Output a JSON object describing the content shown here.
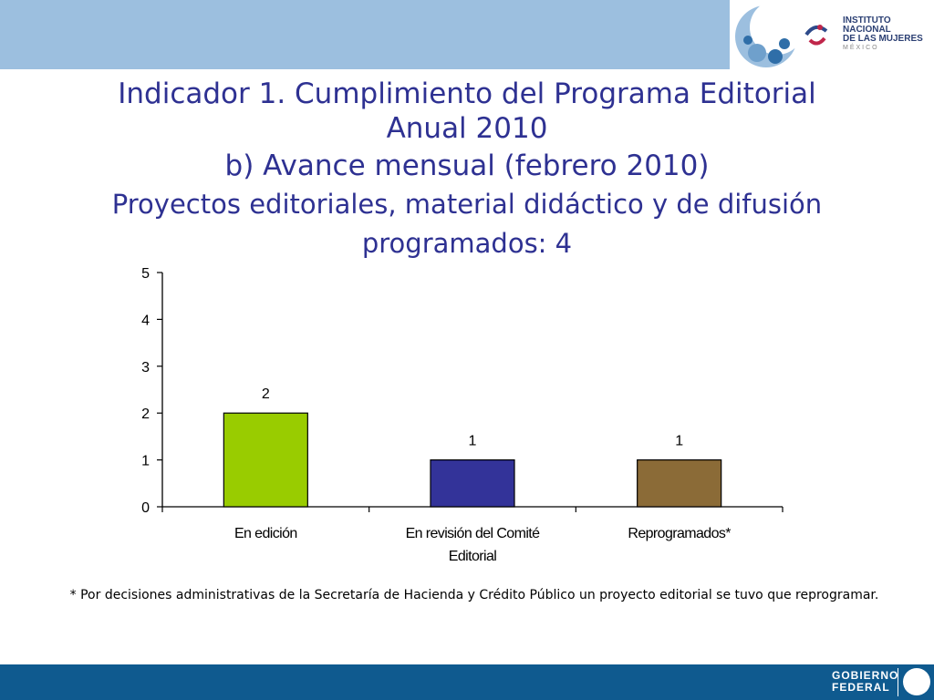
{
  "header": {
    "logo_line1": "INSTITUTO NACIONAL",
    "logo_line2": "DE LAS MUJERES",
    "logo_line3": "MÉXICO"
  },
  "titles": {
    "line1": "Indicador 1. Cumplimiento del Programa Editorial",
    "line2": "Anual 2010",
    "line3": "b) Avance mensual (febrero 2010)",
    "line4": "Proyectos editoriales, material didáctico y de difusión",
    "line5": "programados: 4"
  },
  "chart_data": {
    "type": "bar",
    "categories": [
      [
        "En edición"
      ],
      [
        "En revisión del Comité",
        "Editorial"
      ],
      [
        "Reprogramados*"
      ]
    ],
    "values": [
      2,
      1,
      1
    ],
    "data_labels": [
      "2",
      "1",
      "1"
    ],
    "colors": [
      "#99cc00",
      "#333399",
      "#8b6b37"
    ],
    "ylim": [
      0,
      5
    ],
    "yticks": [
      0,
      1,
      2,
      3,
      4,
      5
    ],
    "grid": false,
    "title": "",
    "xlabel": "",
    "ylabel": ""
  },
  "footnote": "* Por decisiones administrativas de la Secretaría de Hacienda y Crédito Público un proyecto editorial se tuvo que reprogramar.",
  "footer": {
    "gob_line1": "GOBIERNO",
    "gob_line2": "FEDERAL"
  }
}
